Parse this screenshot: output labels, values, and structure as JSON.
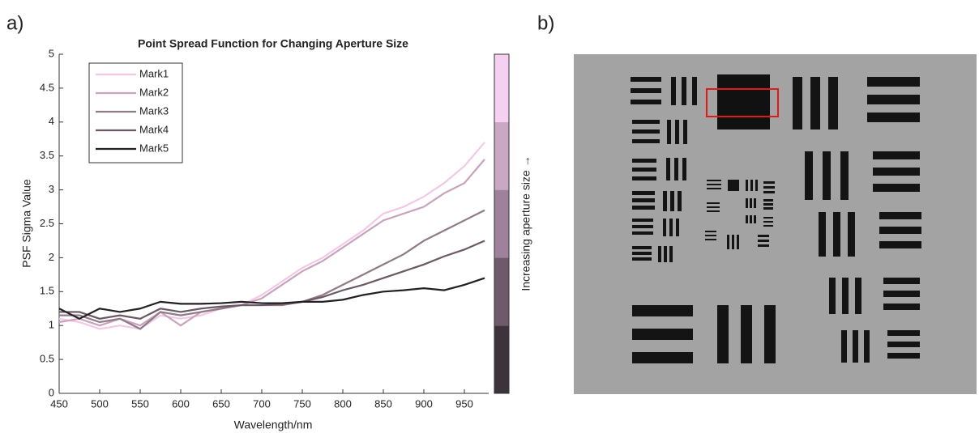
{
  "panels": {
    "a": "a)",
    "b": "b)"
  },
  "chart_data": {
    "type": "line",
    "title": "Point Spread Function for Changing Aperture Size",
    "x_label": "Wavelength/nm",
    "y_label": "PSF Sigma Value",
    "x": [
      450,
      475,
      500,
      525,
      550,
      575,
      600,
      625,
      650,
      675,
      700,
      725,
      750,
      775,
      800,
      825,
      850,
      875,
      900,
      925,
      950,
      975
    ],
    "series": [
      {
        "name": "Mark1",
        "color": "#f2c8e6",
        "values": [
          1.1,
          1.05,
          0.95,
          1.0,
          0.95,
          1.15,
          1.1,
          1.15,
          1.25,
          1.3,
          1.45,
          1.65,
          1.85,
          2.0,
          2.2,
          2.4,
          2.65,
          2.75,
          2.9,
          3.1,
          3.35,
          3.7
        ]
      },
      {
        "name": "Mark2",
        "color": "#c8a3bd",
        "values": [
          1.05,
          1.1,
          1.0,
          1.1,
          1.0,
          1.2,
          1.0,
          1.2,
          1.25,
          1.3,
          1.4,
          1.6,
          1.8,
          1.95,
          2.15,
          2.35,
          2.55,
          2.65,
          2.75,
          2.95,
          3.1,
          3.45
        ]
      },
      {
        "name": "Mark3",
        "color": "#8f7a88",
        "values": [
          1.15,
          1.15,
          1.05,
          1.1,
          0.95,
          1.2,
          1.15,
          1.2,
          1.25,
          1.3,
          1.3,
          1.3,
          1.35,
          1.45,
          1.6,
          1.75,
          1.9,
          2.05,
          2.25,
          2.4,
          2.55,
          2.7
        ]
      },
      {
        "name": "Mark4",
        "color": "#6b5865",
        "values": [
          1.2,
          1.2,
          1.1,
          1.15,
          1.1,
          1.25,
          1.2,
          1.25,
          1.28,
          1.3,
          1.3,
          1.32,
          1.35,
          1.42,
          1.52,
          1.6,
          1.7,
          1.8,
          1.9,
          2.02,
          2.12,
          2.25
        ]
      },
      {
        "name": "Mark5",
        "color": "#231f22",
        "values": [
          1.25,
          1.1,
          1.25,
          1.2,
          1.25,
          1.35,
          1.32,
          1.32,
          1.33,
          1.35,
          1.33,
          1.33,
          1.35,
          1.35,
          1.38,
          1.45,
          1.5,
          1.52,
          1.55,
          1.52,
          1.6,
          1.7
        ]
      }
    ],
    "xlim": [
      450,
      980
    ],
    "ylim": [
      0,
      5
    ],
    "xticks": [
      450,
      500,
      550,
      600,
      650,
      700,
      750,
      800,
      850,
      900,
      950
    ],
    "yticks": [
      0,
      0.5,
      1,
      1.5,
      2,
      2.5,
      3,
      3.5,
      4,
      4.5,
      5
    ],
    "legend": "upper left",
    "colorbar_label": "Increasing aperture size →",
    "colorbar_colors": [
      "#3d333b",
      "#6e5a6b",
      "#9e819a",
      "#c9a8c4",
      "#f5d0f0"
    ]
  }
}
